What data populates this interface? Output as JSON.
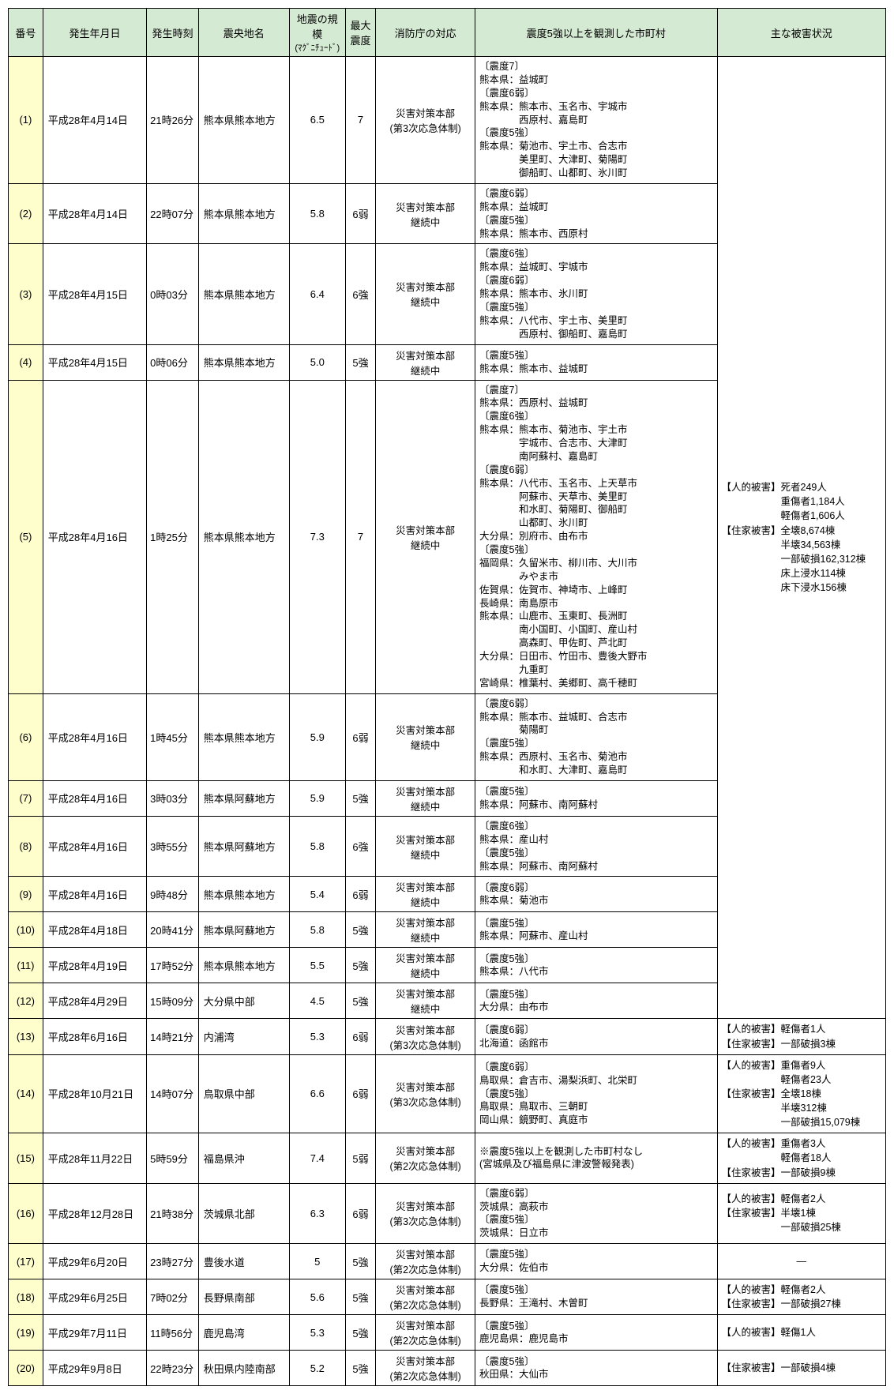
{
  "headers": {
    "number": "番号",
    "date": "発生年月日",
    "time": "発生時刻",
    "epicenter": "震央地名",
    "magnitude_line1": "地震の規模",
    "magnitude_line2": "(ﾏｸﾞﾆﾁｭｰﾄﾞ)",
    "intensity_line1": "最大",
    "intensity_line2": "震度",
    "response": "消防庁の対応",
    "observed": "震度5強以上を観測した市町村",
    "damage": "主な被害状況"
  },
  "merged_damage": "【人的被害】死者249人\n　　　　　　重傷者1,184人\n　　　　　　軽傷者1,606人\n【住家被害】全壊8,674棟\n　　　　　　半壊34,563棟\n　　　　　　一部破損162,312棟\n　　　　　　床上浸水114棟\n　　　　　　床下浸水156棟",
  "rows": [
    {
      "num": "(1)",
      "date": "平成28年4月14日",
      "time": "21時26分",
      "epicenter": "熊本県熊本地方",
      "mag": "6.5",
      "int": "7",
      "resp": "災害対策本部\n(第3次応急体制)",
      "observed": "〔震度7〕\n熊本県：益城町\n〔震度6弱〕\n熊本県：熊本市、玉名市、宇城市\n　　　　西原村、嘉島町\n〔震度5強〕\n熊本県：菊池市、宇土市、合志市\n　　　　美里町、大津町、菊陽町\n　　　　御船町、山都町、氷川町"
    },
    {
      "num": "(2)",
      "date": "平成28年4月14日",
      "time": "22時07分",
      "epicenter": "熊本県熊本地方",
      "mag": "5.8",
      "int": "6弱",
      "resp": "災害対策本部\n継続中",
      "observed": "〔震度6弱〕\n熊本県：益城町\n〔震度5強〕\n熊本県：熊本市、西原村"
    },
    {
      "num": "(3)",
      "date": "平成28年4月15日",
      "time": "0時03分",
      "epicenter": "熊本県熊本地方",
      "mag": "6.4",
      "int": "6強",
      "resp": "災害対策本部\n継続中",
      "observed": "〔震度6強〕\n熊本県：益城町、宇城市\n〔震度6弱〕\n熊本県：熊本市、氷川町\n〔震度5強〕\n熊本県：八代市、宇土市、美里町\n　　　　西原村、御船町、嘉島町"
    },
    {
      "num": "(4)",
      "date": "平成28年4月15日",
      "time": "0時06分",
      "epicenter": "熊本県熊本地方",
      "mag": "5.0",
      "int": "5強",
      "resp": "災害対策本部\n継続中",
      "observed": "〔震度5強〕\n熊本県：熊本市、益城町"
    },
    {
      "num": "(5)",
      "date": "平成28年4月16日",
      "time": "1時25分",
      "epicenter": "熊本県熊本地方",
      "mag": "7.3",
      "int": "7",
      "resp": "災害対策本部\n継続中",
      "observed": "〔震度7〕\n熊本県：西原村、益城町\n〔震度6強〕\n熊本県：熊本市、菊池市、宇土市\n　　　　宇城市、合志市、大津町\n　　　　南阿蘇村、嘉島町\n〔震度6弱〕\n熊本県：八代市、玉名市、上天草市\n　　　　阿蘇市、天草市、美里町\n　　　　和水町、菊陽町、御船町\n　　　　山都町、氷川町\n大分県：別府市、由布市\n〔震度5強〕\n福岡県：久留米市、柳川市、大川市\n　　　　みやま市\n佐賀県：佐賀市、神埼市、上峰町\n長崎県：南島原市\n熊本県：山鹿市、玉東町、長洲町\n　　　　南小国町、小国町、産山村\n　　　　高森町、甲佐町、芦北町\n大分県：日田市、竹田市、豊後大野市\n　　　　九重町\n宮崎県：椎葉村、美郷町、高千穂町"
    },
    {
      "num": "(6)",
      "date": "平成28年4月16日",
      "time": "1時45分",
      "epicenter": "熊本県熊本地方",
      "mag": "5.9",
      "int": "6弱",
      "resp": "災害対策本部\n継続中",
      "observed": "〔震度6弱〕\n熊本県：熊本市、益城町、合志市\n　　　　菊陽町\n〔震度5強〕\n熊本県：西原村、玉名市、菊池市\n　　　　和水町、大津町、嘉島町"
    },
    {
      "num": "(7)",
      "date": "平成28年4月16日",
      "time": "3時03分",
      "epicenter": "熊本県阿蘇地方",
      "mag": "5.9",
      "int": "5強",
      "resp": "災害対策本部\n継続中",
      "observed": "〔震度5強〕\n熊本県：阿蘇市、南阿蘇村"
    },
    {
      "num": "(8)",
      "date": "平成28年4月16日",
      "time": "3時55分",
      "epicenter": "熊本県阿蘇地方",
      "mag": "5.8",
      "int": "6強",
      "resp": "災害対策本部\n継続中",
      "observed": "〔震度6強〕\n熊本県：産山村\n〔震度5強〕\n熊本県：阿蘇市、南阿蘇村"
    },
    {
      "num": "(9)",
      "date": "平成28年4月16日",
      "time": "9時48分",
      "epicenter": "熊本県熊本地方",
      "mag": "5.4",
      "int": "6弱",
      "resp": "災害対策本部\n継続中",
      "observed": "〔震度6弱〕\n熊本県：菊池市"
    },
    {
      "num": "(10)",
      "date": "平成28年4月18日",
      "time": "20時41分",
      "epicenter": "熊本県阿蘇地方",
      "mag": "5.8",
      "int": "5強",
      "resp": "災害対策本部\n継続中",
      "observed": "〔震度5強〕\n熊本県：阿蘇市、産山村"
    },
    {
      "num": "(11)",
      "date": "平成28年4月19日",
      "time": "17時52分",
      "epicenter": "熊本県熊本地方",
      "mag": "5.5",
      "int": "5強",
      "resp": "災害対策本部\n継続中",
      "observed": "〔震度5強〕\n熊本県：八代市"
    },
    {
      "num": "(12)",
      "date": "平成28年4月29日",
      "time": "15時09分",
      "epicenter": "大分県中部",
      "mag": "4.5",
      "int": "5強",
      "resp": "災害対策本部\n継続中",
      "observed": "〔震度5強〕\n大分県：由布市"
    },
    {
      "num": "(13)",
      "date": "平成28年6月16日",
      "time": "14時21分",
      "epicenter": "内浦湾",
      "mag": "5.3",
      "int": "6弱",
      "resp": "災害対策本部\n(第3次応急体制)",
      "observed": "〔震度6弱〕\n北海道：函館市",
      "damage": "【人的被害】軽傷者1人\n【住家被害】一部破損3棟"
    },
    {
      "num": "(14)",
      "date": "平成28年10月21日",
      "time": "14時07分",
      "epicenter": "鳥取県中部",
      "mag": "6.6",
      "int": "6弱",
      "resp": "災害対策本部\n(第3次応急体制)",
      "observed": "〔震度6弱〕\n鳥取県：倉吉市、湯梨浜町、北栄町\n〔震度5強〕\n鳥取県：鳥取市、三朝町\n岡山県：鏡野町、真庭市",
      "damage": "【人的被害】重傷者9人\n　　　　　　軽傷者23人\n【住家被害】全壊18棟\n　　　　　　半壊312棟\n　　　　　　一部破損15,079棟"
    },
    {
      "num": "(15)",
      "date": "平成28年11月22日",
      "time": "5時59分",
      "epicenter": "福島県沖",
      "mag": "7.4",
      "int": "5弱",
      "resp": "災害対策本部\n(第2次応急体制)",
      "observed": "※震度5強以上を観測した市町村なし\n(宮城県及び福島県に津波警報発表)",
      "damage": "【人的被害】重傷者3人\n　　　　　　軽傷者18人\n【住家被害】一部破損9棟"
    },
    {
      "num": "(16)",
      "date": "平成28年12月28日",
      "time": "21時38分",
      "epicenter": "茨城県北部",
      "mag": "6.3",
      "int": "6弱",
      "resp": "災害対策本部\n(第3次応急体制)",
      "observed": "〔震度6弱〕\n茨城県：高萩市\n〔震度5強〕\n茨城県：日立市",
      "damage": "【人的被害】軽傷者2人\n【住家被害】半壊1棟\n　　　　　　一部破損25棟"
    },
    {
      "num": "(17)",
      "date": "平成29年6月20日",
      "time": "23時27分",
      "epicenter": "豊後水道",
      "mag": "5",
      "int": "5強",
      "resp": "災害対策本部\n(第2次応急体制)",
      "observed": "〔震度5強〕\n大分県：佐伯市",
      "damage": "—",
      "damage_center": true
    },
    {
      "num": "(18)",
      "date": "平成29年6月25日",
      "time": "7時02分",
      "epicenter": "長野県南部",
      "mag": "5.6",
      "int": "5強",
      "resp": "災害対策本部\n(第2次応急体制)",
      "observed": "〔震度5強〕\n長野県：王滝村、木曽町",
      "damage": "【人的被害】軽傷者2人\n【住家被害】一部破損27棟"
    },
    {
      "num": "(19)",
      "date": "平成29年7月11日",
      "time": "11時56分",
      "epicenter": "鹿児島湾",
      "mag": "5.3",
      "int": "5強",
      "resp": "災害対策本部\n(第2次応急体制)",
      "observed": "〔震度5強〕\n鹿児島県：鹿児島市",
      "damage": "【人的被害】軽傷1人"
    },
    {
      "num": "(20)",
      "date": "平成29年9月8日",
      "time": "22時23分",
      "epicenter": "秋田県内陸南部",
      "mag": "5.2",
      "int": "5強",
      "resp": "災害対策本部\n(第2次応急体制)",
      "observed": "〔震度5強〕\n秋田県：大仙市",
      "damage": "【住家被害】一部破損4棟"
    }
  ]
}
